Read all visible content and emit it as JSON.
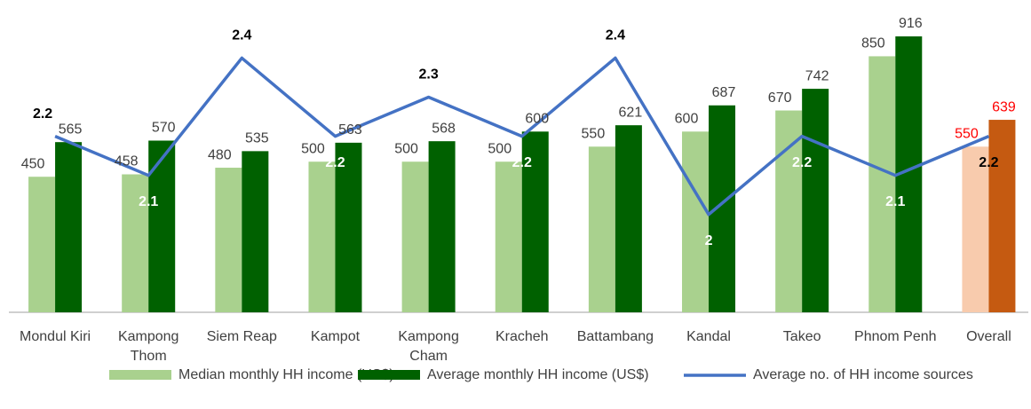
{
  "chart_data": {
    "type": "bar-line",
    "categories": [
      "Mondul Kiri",
      "Kampong\nThom",
      "Siem Reap",
      "Kampot",
      "Kampong\nCham",
      "Kracheh",
      "Battambang",
      "Kandal",
      "Takeo",
      "Phnom Penh",
      "Overall"
    ],
    "series": [
      {
        "name": "Median monthly HH income (US$)",
        "type": "bar",
        "color": "#a9d18e",
        "colors": [
          "#a9d18e",
          "#a9d18e",
          "#a9d18e",
          "#a9d18e",
          "#a9d18e",
          "#a9d18e",
          "#a9d18e",
          "#a9d18e",
          "#a9d18e",
          "#a9d18e",
          "#f8cbad"
        ],
        "label_colors": [
          "#404040",
          "#404040",
          "#404040",
          "#404040",
          "#404040",
          "#404040",
          "#404040",
          "#404040",
          "#404040",
          "#404040",
          "#ff0000"
        ],
        "values": [
          450,
          458,
          480,
          500,
          500,
          500,
          550,
          600,
          670,
          850,
          550
        ]
      },
      {
        "name": "Average monthly HH income (US$)",
        "type": "bar",
        "color": "#006100",
        "colors": [
          "#006100",
          "#006100",
          "#006100",
          "#006100",
          "#006100",
          "#006100",
          "#006100",
          "#006100",
          "#006100",
          "#006100",
          "#c55a11"
        ],
        "label_colors": [
          "#404040",
          "#404040",
          "#404040",
          "#404040",
          "#404040",
          "#404040",
          "#404040",
          "#404040",
          "#404040",
          "#404040",
          "#ff0000"
        ],
        "values": [
          565,
          570,
          535,
          563,
          568,
          600,
          621,
          687,
          742,
          916,
          639
        ]
      },
      {
        "name": "Average no. of HH income sources",
        "type": "line",
        "axis": "y2",
        "color": "#4472c4",
        "label_colors": [
          "#000000",
          "#ffffff",
          "#000000",
          "#ffffff",
          "#000000",
          "#ffffff",
          "#000000",
          "#ffffff",
          "#ffffff",
          "#ffffff",
          "#000000"
        ],
        "label_positions": [
          "above",
          "below",
          "above",
          "below",
          "above",
          "below",
          "above",
          "below",
          "below",
          "below",
          "below"
        ],
        "values": [
          2.2,
          2.1,
          2.4,
          2.2,
          2.3,
          2.2,
          2.4,
          2.0,
          2.2,
          2.1,
          2.2
        ]
      }
    ],
    "ylim": [
      0,
      1000
    ],
    "y2lim": [
      1.75,
      2.52
    ],
    "legend": "bottom"
  }
}
